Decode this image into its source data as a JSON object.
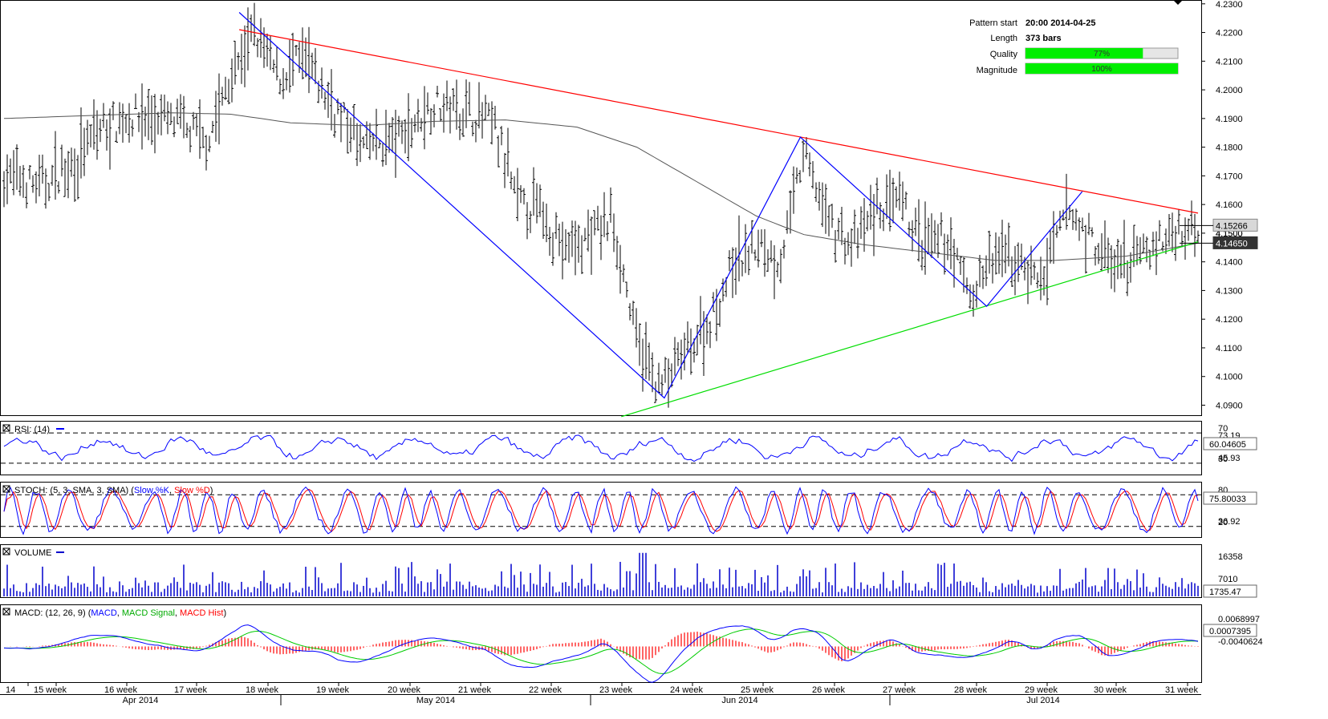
{
  "info": {
    "pattern_start_label": "Pattern start",
    "pattern_start_value": "20:00 2014-04-25",
    "length_label": "Length",
    "length_value": "373 bars",
    "quality_label": "Quality",
    "quality_value": 77,
    "quality_text": "77%",
    "magnitude_label": "Magnitude",
    "magnitude_value": 100,
    "magnitude_text": "100%"
  },
  "colors": {
    "resistance": "#ff0000",
    "support": "#00dd00",
    "zigzag": "#0000ff",
    "ma": "#555555",
    "bars": "#000000",
    "rsi": "#0000ff",
    "stoch_k": "#0000ff",
    "stoch_d": "#ff0000",
    "volume": "#0000cc",
    "macd": "#0000ff",
    "macd_signal": "#00cc00",
    "macd_hist": "#ff0000",
    "quality_bar": "#00ee00"
  },
  "chart_data": {
    "type": "ohlc",
    "price_axis": {
      "ylim": [
        4.0865,
        4.2305
      ],
      "ticks": [
        "4.2300",
        "4.2200",
        "4.2100",
        "4.2000",
        "4.1900",
        "4.1800",
        "4.1700",
        "4.1600",
        "4.1500",
        "4.1400",
        "4.1300",
        "4.1200",
        "4.1100",
        "4.1000",
        "4.0900"
      ],
      "current_price": "4.15266",
      "ma_price": "4.14650",
      "hidden_label": "4.1500"
    },
    "price_path": [
      {
        "t": 0,
        "p": 4.17
      },
      {
        "t": 0.03,
        "p": 4.166
      },
      {
        "t": 0.06,
        "p": 4.175
      },
      {
        "t": 0.08,
        "p": 4.186
      },
      {
        "t": 0.11,
        "p": 4.191
      },
      {
        "t": 0.14,
        "p": 4.189
      },
      {
        "t": 0.17,
        "p": 4.182
      },
      {
        "t": 0.19,
        "p": 4.204
      },
      {
        "t": 0.21,
        "p": 4.22
      },
      {
        "t": 0.23,
        "p": 4.204
      },
      {
        "t": 0.25,
        "p": 4.211
      },
      {
        "t": 0.27,
        "p": 4.198
      },
      {
        "t": 0.3,
        "p": 4.18
      },
      {
        "t": 0.33,
        "p": 4.183
      },
      {
        "t": 0.36,
        "p": 4.195
      },
      {
        "t": 0.38,
        "p": 4.194
      },
      {
        "t": 0.41,
        "p": 4.188
      },
      {
        "t": 0.43,
        "p": 4.16
      },
      {
        "t": 0.45,
        "p": 4.158
      },
      {
        "t": 0.47,
        "p": 4.144
      },
      {
        "t": 0.49,
        "p": 4.148
      },
      {
        "t": 0.51,
        "p": 4.155
      },
      {
        "t": 0.53,
        "p": 4.112
      },
      {
        "t": 0.55,
        "p": 4.096
      },
      {
        "t": 0.57,
        "p": 4.108
      },
      {
        "t": 0.59,
        "p": 4.118
      },
      {
        "t": 0.61,
        "p": 4.138
      },
      {
        "t": 0.63,
        "p": 4.146
      },
      {
        "t": 0.65,
        "p": 4.14
      },
      {
        "t": 0.67,
        "p": 4.178
      },
      {
        "t": 0.69,
        "p": 4.155
      },
      {
        "t": 0.71,
        "p": 4.145
      },
      {
        "t": 0.73,
        "p": 4.158
      },
      {
        "t": 0.75,
        "p": 4.16
      },
      {
        "t": 0.77,
        "p": 4.145
      },
      {
        "t": 0.79,
        "p": 4.148
      },
      {
        "t": 0.81,
        "p": 4.128
      },
      {
        "t": 0.83,
        "p": 4.142
      },
      {
        "t": 0.85,
        "p": 4.14
      },
      {
        "t": 0.87,
        "p": 4.133
      },
      {
        "t": 0.89,
        "p": 4.158
      },
      {
        "t": 0.91,
        "p": 4.148
      },
      {
        "t": 0.93,
        "p": 4.137
      },
      {
        "t": 0.95,
        "p": 4.142
      },
      {
        "t": 0.97,
        "p": 4.147
      },
      {
        "t": 0.99,
        "p": 4.152
      },
      {
        "t": 1,
        "p": 4.1527
      }
    ],
    "moving_average": [
      {
        "t": 0,
        "p": 4.19
      },
      {
        "t": 0.07,
        "p": 4.191
      },
      {
        "t": 0.14,
        "p": 4.192
      },
      {
        "t": 0.19,
        "p": 4.1915
      },
      {
        "t": 0.24,
        "p": 4.1885
      },
      {
        "t": 0.3,
        "p": 4.1875
      },
      {
        "t": 0.36,
        "p": 4.189
      },
      {
        "t": 0.42,
        "p": 4.1895
      },
      {
        "t": 0.48,
        "p": 4.187
      },
      {
        "t": 0.53,
        "p": 4.18
      },
      {
        "t": 0.58,
        "p": 4.168
      },
      {
        "t": 0.63,
        "p": 4.156
      },
      {
        "t": 0.67,
        "p": 4.1495
      },
      {
        "t": 0.72,
        "p": 4.146
      },
      {
        "t": 0.77,
        "p": 4.1435
      },
      {
        "t": 0.83,
        "p": 4.1405
      },
      {
        "t": 0.88,
        "p": 4.1405
      },
      {
        "t": 0.94,
        "p": 4.142
      },
      {
        "t": 1,
        "p": 4.1465
      }
    ],
    "resistance_line": [
      {
        "t": 0.197,
        "p": 4.221
      },
      {
        "t": 1,
        "p": 4.157
      }
    ],
    "support_line": [
      {
        "t": 0.517,
        "p": 4.086
      },
      {
        "t": 1,
        "p": 4.147
      }
    ],
    "zigzag": [
      {
        "t": 0.197,
        "p": 4.227
      },
      {
        "t": 0.553,
        "p": 4.0925
      },
      {
        "t": 0.667,
        "p": 4.1835
      },
      {
        "t": 0.823,
        "p": 4.1245
      },
      {
        "t": 0.903,
        "p": 4.1645
      }
    ],
    "x_axis": {
      "weeks": [
        "14",
        "15 week",
        "16 week",
        "17 week",
        "18 week",
        "19 week",
        "20 week",
        "21 week",
        "22 week",
        "23 week",
        "24 week",
        "25 week",
        "26 week",
        "27 week",
        "28 week",
        "29 week",
        "30 week",
        "31 week"
      ],
      "months": [
        "Apr 2014",
        "May 2014",
        "Jun 2014",
        "Jul 2014"
      ]
    },
    "panels": {
      "rsi": {
        "title": "RSI: (14)",
        "levels": [
          "70",
          "30"
        ],
        "labels": [
          "73.19",
          "45.93"
        ],
        "value": "60.04605",
        "ylim": [
          15,
          85
        ]
      },
      "stoch": {
        "title": "STOCH: (5, 3, SMA, 3, SMA)",
        "k_label": "Slow %K",
        "d_label": "Slow %D",
        "levels": [
          "80",
          "20"
        ],
        "labels": [
          "36.92"
        ],
        "value": "75.80033",
        "ylim": [
          0,
          100
        ]
      },
      "volume": {
        "title": "VOLUME",
        "labels": [
          "16358",
          "7010"
        ],
        "value": "1735.47",
        "ylim": [
          0,
          20000
        ]
      },
      "macd": {
        "title": "MACD: (12, 26, 9)",
        "line_label": "MACD",
        "signal_label": "MACD Signal",
        "hist_label": "MACD Hist",
        "labels": [
          "0.0068997",
          "-0.0040624"
        ],
        "value": "0.0007395",
        "ylim": [
          -0.009,
          0.01
        ]
      }
    }
  }
}
